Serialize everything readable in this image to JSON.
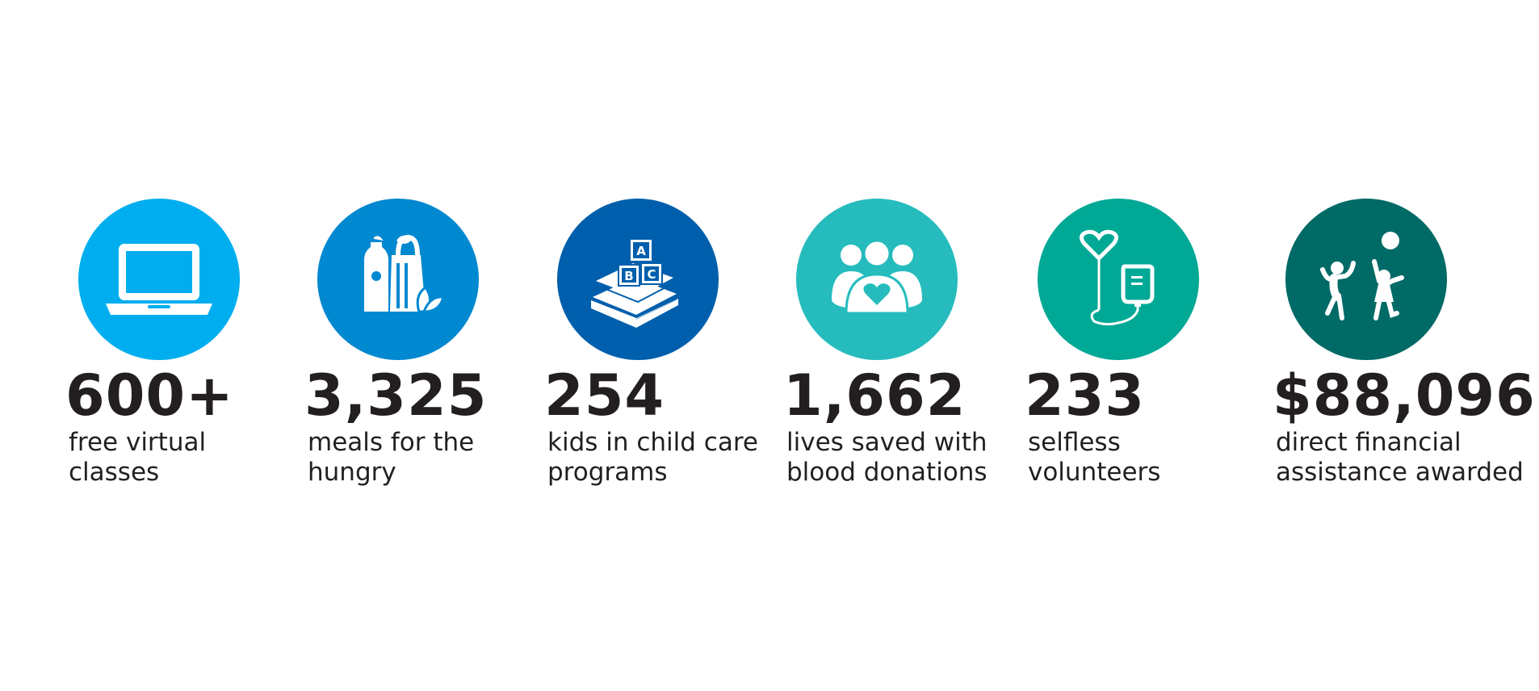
{
  "stats": [
    {
      "value": "600+",
      "line1": "free virtual",
      "line2": "classes",
      "icon": "laptop-icon",
      "color": "#00aeef"
    },
    {
      "value": "3,325",
      "line1": "meals for the",
      "line2": "hungry",
      "icon": "groceries-icon",
      "color": "#0088d1"
    },
    {
      "value": "254",
      "line1": "kids in child care",
      "line2": "programs",
      "icon": "abc-blocks-books-icon",
      "color": "#005fac"
    },
    {
      "value": "1,662",
      "line1": "lives saved with",
      "line2": "blood donations",
      "icon": "people-heart-icon",
      "color": "#26bcbd"
    },
    {
      "value": "233",
      "line1": "selfless",
      "line2": "volunteers",
      "icon": "iv-bag-heart-icon",
      "color": "#00a896"
    },
    {
      "value": "$88,096",
      "line1": "direct financial",
      "line2": "assistance awarded",
      "icon": "kids-playing-icon",
      "color": "#006a66"
    }
  ]
}
